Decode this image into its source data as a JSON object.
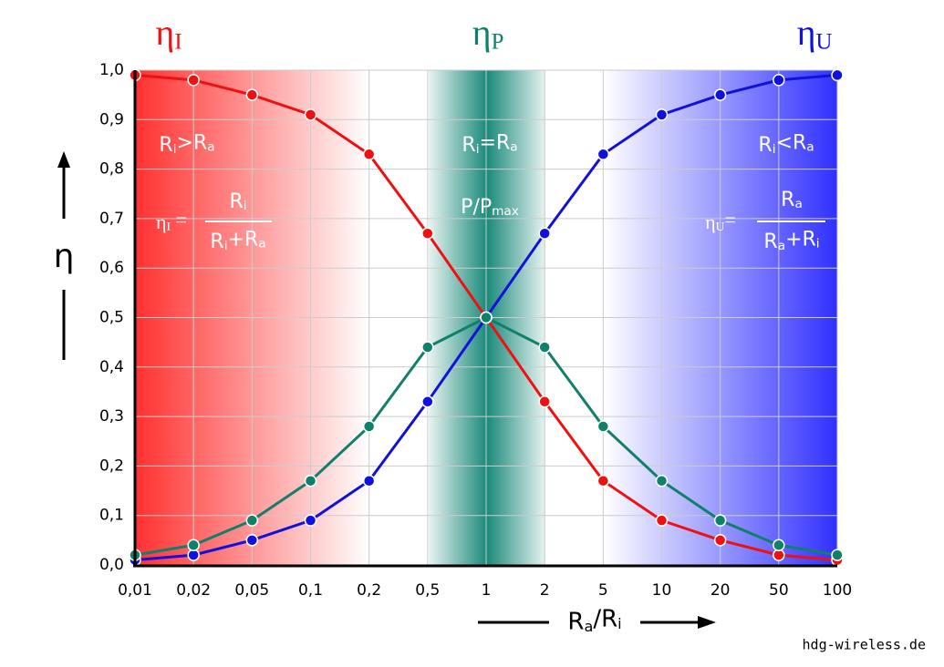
{
  "chart_data": {
    "type": "line",
    "categories": [
      "0,01",
      "0,02",
      "0,05",
      "0,1",
      "0,2",
      "0,5",
      "1",
      "2",
      "5",
      "10",
      "20",
      "50",
      "100"
    ],
    "series": [
      {
        "name": "ηI",
        "color": "#ee1111",
        "values": [
          0.99,
          0.98,
          0.95,
          0.91,
          0.83,
          0.67,
          0.5,
          0.33,
          0.17,
          0.09,
          0.05,
          0.02,
          0.01
        ]
      },
      {
        "name": "ηU",
        "color": "#1111dd",
        "values": [
          0.01,
          0.02,
          0.05,
          0.09,
          0.17,
          0.33,
          0.5,
          0.67,
          0.83,
          0.91,
          0.95,
          0.98,
          0.99
        ]
      },
      {
        "name": "ηP",
        "color": "#11806a",
        "values": [
          0.02,
          0.04,
          0.09,
          0.17,
          0.28,
          0.44,
          0.5,
          0.44,
          0.28,
          0.17,
          0.09,
          0.04,
          0.02
        ]
      }
    ],
    "ylim": [
      0,
      1
    ],
    "yticks": [
      {
        "value": 0,
        "label": "0,0"
      },
      {
        "value": 0.1,
        "label": "0,1"
      },
      {
        "value": 0.2,
        "label": "0,2"
      },
      {
        "value": 0.3,
        "label": "0,3"
      },
      {
        "value": 0.4,
        "label": "0,4"
      },
      {
        "value": 0.5,
        "label": "0,5"
      },
      {
        "value": 0.6,
        "label": "0,6"
      },
      {
        "value": 0.7,
        "label": "0,7"
      },
      {
        "value": 0.8,
        "label": "0,8"
      },
      {
        "value": 0.9,
        "label": "0,9"
      },
      {
        "value": 1,
        "label": "1,0"
      }
    ],
    "grid": true,
    "ylabel": "η",
    "xlabel": "Ra/Ri",
    "annotations": {
      "left": "Ri>Ra",
      "center": "Ri=Ra",
      "right": "Ri<Ra",
      "power": "P/Pmax"
    },
    "formula_left": {
      "lhs": "ηI =",
      "numerator": "Ri",
      "denominator": "Ri+Ra"
    },
    "formula_right": {
      "lhs": "ηU=",
      "numerator": "Ra",
      "denominator": "Ra+Ri"
    },
    "source": "hdg-wireless.de"
  }
}
